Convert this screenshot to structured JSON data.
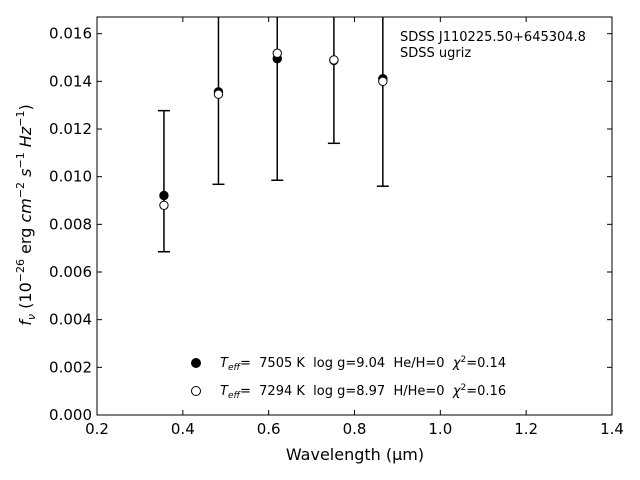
{
  "chart_data": {
    "type": "scatter",
    "xlabel": "Wavelength (μm)",
    "ylabel": "f_ν (10^-26 erg cm^-2 s^-1 Hz^-1)",
    "xlim": [
      0.2,
      1.4
    ],
    "ylim": [
      0.0,
      0.0167
    ],
    "x_ticks": [
      "0.2",
      "0.4",
      "0.6",
      "0.8",
      "1.0",
      "1.2",
      "1.4"
    ],
    "y_ticks": [
      "0.000",
      "0.002",
      "0.004",
      "0.006",
      "0.008",
      "0.010",
      "0.012",
      "0.014",
      "0.016"
    ],
    "annotation": {
      "line1": "SDSS J110225.50+645304.8",
      "line2": "SDSS ugriz"
    },
    "observed": {
      "x": [
        0.356,
        0.483,
        0.62,
        0.752,
        0.866
      ],
      "yerr_low": [
        0.00685,
        0.00968,
        0.00985,
        0.0114,
        0.0096
      ],
      "yerr_high": [
        0.01277,
        0.02,
        0.02,
        0.02,
        0.02
      ]
    },
    "series": [
      {
        "x": [
          0.356,
          0.483,
          0.62,
          0.752,
          0.866
        ],
        "y": [
          0.00921,
          0.01356,
          0.01495,
          0.01488,
          0.01411
        ],
        "marker": "filled-circle",
        "legend": {
          "teff_label": "T",
          "teff_sub": "eff",
          "text_a": "=  7505 K  log g=9.04  He/H=0  ",
          "chi_label": "χ",
          "chi_sup": "2",
          "chi_value": "=0.14"
        }
      },
      {
        "x": [
          0.356,
          0.483,
          0.62,
          0.752,
          0.866
        ],
        "y": [
          0.0088,
          0.01346,
          0.01518,
          0.0149,
          0.014
        ],
        "marker": "open-circle",
        "legend": {
          "teff_label": "T",
          "teff_sub": "eff",
          "text_a": "=  7294 K  log g=8.97  H/He=0  ",
          "chi_label": "χ",
          "chi_sup": "2",
          "chi_value": "=0.16"
        }
      }
    ],
    "grid": false,
    "legend_position": "bottom-center"
  }
}
